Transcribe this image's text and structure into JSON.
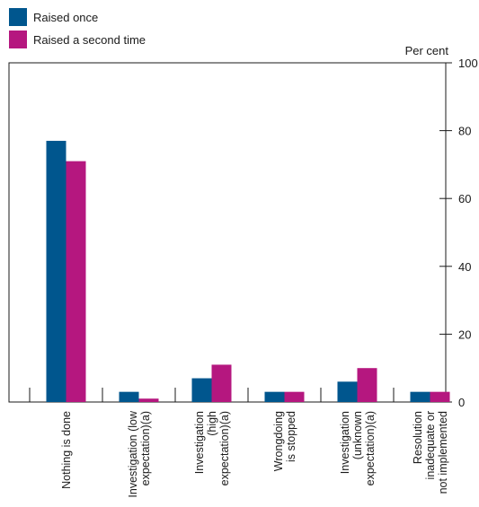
{
  "chart_data": {
    "type": "bar",
    "orientation": "vertical",
    "y_axis_position": "right",
    "ylabel": "Per cent",
    "ylim": [
      0,
      100
    ],
    "yticks": [
      0,
      20,
      40,
      60,
      80,
      100
    ],
    "grid": false,
    "legend_placement": "top-left",
    "categories": [
      [
        "Nothing is done"
      ],
      [
        "Investigation (low",
        "expectation)(a)"
      ],
      [
        "Investigation",
        "(high",
        "expectation)(a)"
      ],
      [
        "Wrongdoing",
        "is stopped"
      ],
      [
        "Investigation",
        "(unknown",
        "expectation)(a)"
      ],
      [
        "Resolution",
        "inadequate or",
        "not implemented"
      ]
    ],
    "series": [
      {
        "name": "Raised once",
        "color": "#00568e",
        "values": [
          77,
          3,
          7,
          3,
          6,
          3
        ]
      },
      {
        "name": "Raised a second time",
        "color": "#b5177f",
        "values": [
          71,
          1,
          11,
          3,
          10,
          3
        ]
      }
    ]
  }
}
